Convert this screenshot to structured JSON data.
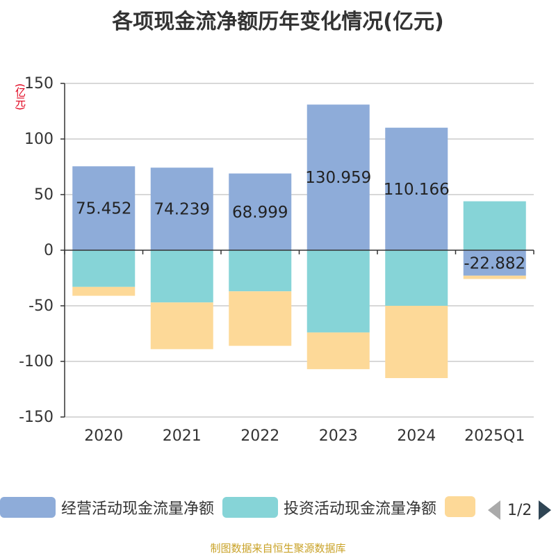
{
  "title": "各项现金流净额历年变化情况(亿元)",
  "unit_label": "(亿元)",
  "legend": {
    "items": [
      {
        "label": "经营活动现金流量净额",
        "color": "#8eacd9"
      },
      {
        "label": "投资活动现金流量净额",
        "color": "#86d4d7"
      },
      {
        "label": "",
        "color": "#fdd998"
      }
    ],
    "page": "1/2"
  },
  "source": "制图数据来自恒生聚源数据库",
  "chart_data": {
    "type": "bar",
    "stacked": true,
    "categories": [
      "2020",
      "2021",
      "2022",
      "2023",
      "2024",
      "2025Q1"
    ],
    "ylim": [
      -150,
      150
    ],
    "yticks": [
      150,
      100,
      50,
      0,
      -50,
      -100,
      -150
    ],
    "grid": true,
    "series": [
      {
        "name": "经营活动现金流量净额",
        "color": "#8eacd9",
        "values": [
          75.452,
          74.239,
          68.999,
          130.959,
          110.166,
          -22.882
        ],
        "labels": [
          "75.452",
          "74.239",
          "68.999",
          "130.959",
          "110.166",
          "-22.882"
        ]
      },
      {
        "name": "投资活动现金流量净额",
        "color": "#86d4d7",
        "values": [
          -33,
          -47,
          -37,
          -74,
          -50,
          44
        ]
      },
      {
        "color": "#fdd998",
        "values": [
          -8,
          -42,
          -49,
          -33,
          -65,
          -3
        ]
      }
    ]
  }
}
